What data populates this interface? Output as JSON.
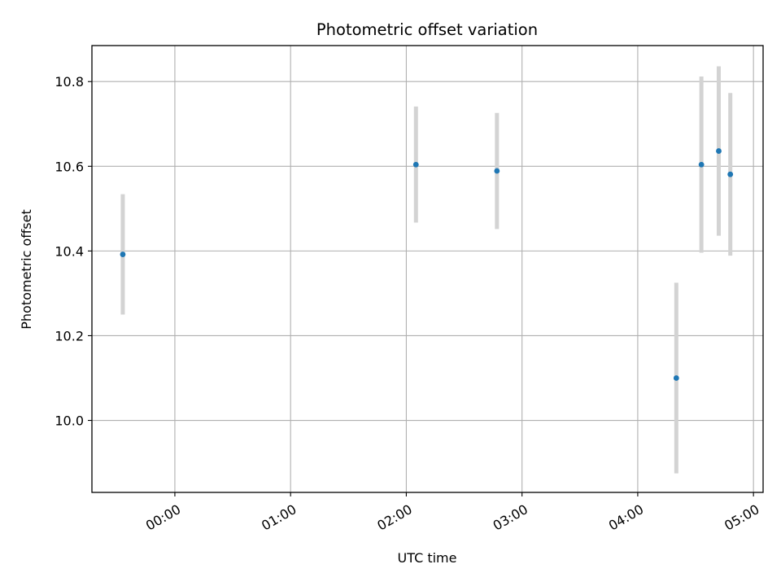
{
  "chart_data": {
    "type": "scatter",
    "title": "Photometric offset variation",
    "xlabel": "UTC time",
    "ylabel": "Photometric offset",
    "x_unit": "HH:MM UTC",
    "xlim": [
      "23:17",
      "05:05"
    ],
    "ylim": [
      9.83,
      10.885
    ],
    "x_ticks": [
      "00:00",
      "01:00",
      "02:00",
      "03:00",
      "04:00",
      "05:00"
    ],
    "y_ticks": [
      "10.0",
      "10.2",
      "10.4",
      "10.6",
      "10.8"
    ],
    "grid": true,
    "marker_color": "#1f77b4",
    "errorbar_color": "#d3d3d3",
    "points": [
      {
        "time": "23:33",
        "y": 10.392,
        "yerr": 0.142
      },
      {
        "time": "02:05",
        "y": 10.604,
        "yerr": 0.137
      },
      {
        "time": "02:47",
        "y": 10.589,
        "yerr": 0.137
      },
      {
        "time": "04:20",
        "y": 10.1,
        "yerr": 0.225
      },
      {
        "time": "04:33",
        "y": 10.604,
        "yerr": 0.208
      },
      {
        "time": "04:42",
        "y": 10.636,
        "yerr": 0.2
      },
      {
        "time": "04:48",
        "y": 10.581,
        "yerr": 0.192
      }
    ]
  }
}
